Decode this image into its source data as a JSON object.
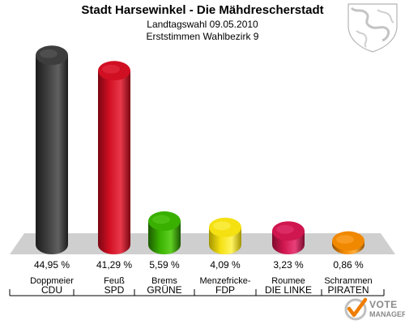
{
  "header": {
    "title": "Stadt Harsewinkel - Die Mähdrescherstadt",
    "subtitle": "Landtagswahl 09.05.2010",
    "subtitle2": "Erststimmen Wahlbezirk 9"
  },
  "logo": {
    "line1": "VOTE",
    "line2": "MANAGER"
  },
  "icons": {
    "coat_of_arms": "coat-of-arms-icon",
    "logo": "vote-manager-logo-icon"
  },
  "chart_data": {
    "type": "bar",
    "title": "Stadt Harsewinkel - Die Mähdrescherstadt",
    "subtitle": "Landtagswahl 09.05.2010",
    "xlabel": "",
    "ylabel": "",
    "ylim": [
      0,
      50
    ],
    "grid": false,
    "legend": "none",
    "categories": [
      "CDU",
      "SPD",
      "GRÜNE",
      "FDP",
      "DIE LINKE",
      "PIRATEN"
    ],
    "candidates": [
      "Doppmeier",
      "Feuß",
      "Brems",
      "Menzefricke-",
      "Roumee",
      "Schrammen"
    ],
    "values": [
      44.95,
      41.29,
      5.59,
      4.09,
      3.23,
      0.86
    ],
    "value_labels": [
      "44,95 %",
      "41,29 %",
      "5,59 %",
      "4,09 %",
      "3,23 %",
      "0,86 %"
    ],
    "colors": [
      "#3d3d3d",
      "#d10f23",
      "#39b000",
      "#f5e012",
      "#d0164e",
      "#f08800"
    ],
    "dark_colors": [
      "#1c1c1c",
      "#7a0712",
      "#1c5a00",
      "#a39500",
      "#7d0c2e",
      "#8f5100"
    ],
    "light_colors": [
      "#606060",
      "#e8384a",
      "#5fd023",
      "#fff460",
      "#e8407a",
      "#ffae40"
    ]
  }
}
